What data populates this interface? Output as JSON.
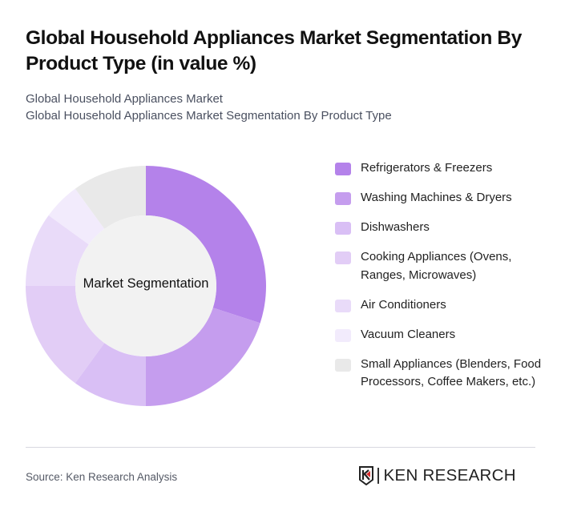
{
  "header": {
    "title": "Global Household Appliances Market Segmentation By Product Type (in value %)",
    "subtitle_line1": "Global Household Appliances Market",
    "subtitle_line2": "Global Household Appliances Market Segmentation By Product Type"
  },
  "chart_data": {
    "type": "pie",
    "variant": "donut",
    "title": "Global Household Appliances Market Segmentation By Product Type (in value %)",
    "center_label": "Market Segmentation",
    "categories": [
      "Refrigerators & Freezers",
      "Washing Machines & Dryers",
      "Dishwashers",
      "Cooking Appliances (Ovens, Ranges, Microwaves)",
      "Air Conditioners",
      "Vacuum Cleaners",
      "Small Appliances (Blenders, Food Processors, Coffee Makers, etc.)"
    ],
    "values": [
      30,
      20,
      10,
      15,
      10,
      5,
      10
    ],
    "colors": [
      "#b482ea",
      "#c59dee",
      "#d9bff5",
      "#e2cdf6",
      "#e9dbf9",
      "#f2ebfc",
      "#e9e9e9"
    ],
    "legend_position": "right"
  },
  "legend": {
    "items": [
      {
        "label": "Refrigerators & Freezers",
        "color": "#b482ea"
      },
      {
        "label": "Washing Machines & Dryers",
        "color": "#c59dee"
      },
      {
        "label": "Dishwashers",
        "color": "#d9bff5"
      },
      {
        "label": "Cooking Appliances (Ovens, Ranges, Microwaves)",
        "color": "#e2cdf6"
      },
      {
        "label": "Air Conditioners",
        "color": "#e9dbf9"
      },
      {
        "label": "Vacuum Cleaners",
        "color": "#f2ebfc"
      },
      {
        "label": "Small Appliances (Blenders, Food Processors, Coffee Makers, etc.)",
        "color": "#e9e9e9"
      }
    ]
  },
  "footer": {
    "source": "Source: Ken Research Analysis",
    "logo_text": "KEN RESEARCH",
    "logo_icon": "ken-research-shield-icon"
  }
}
